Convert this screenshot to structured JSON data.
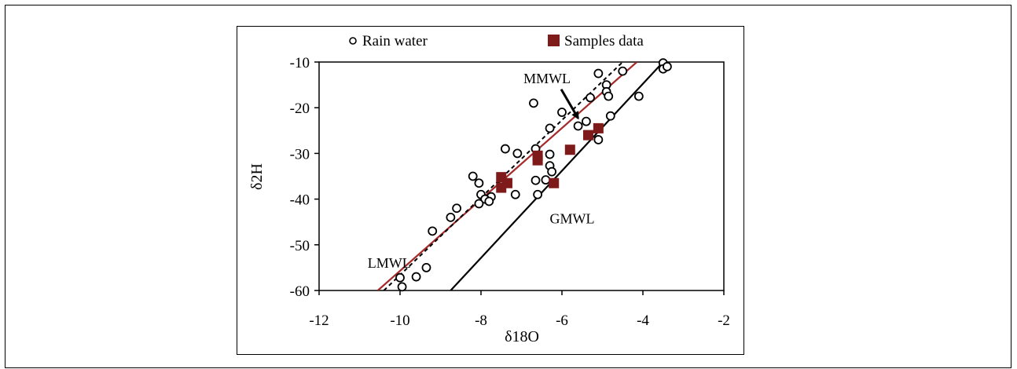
{
  "chart_data": {
    "type": "scatter",
    "xlabel": "δ18O",
    "ylabel": "δ2H",
    "xlim": [
      -12,
      -2
    ],
    "ylim": [
      -60,
      -10
    ],
    "xticks": [
      -12,
      -10,
      -8,
      -6,
      -4,
      -2
    ],
    "yticks": [
      -10,
      -20,
      -30,
      -40,
      -50,
      -60
    ],
    "grid": false,
    "legend_position": "top",
    "series": [
      {
        "name": "Rain water",
        "marker": "open-circle",
        "color": "#000000",
        "points": [
          [
            -3.5,
            -10.2
          ],
          [
            -3.5,
            -11.5
          ],
          [
            -3.4,
            -11.0
          ],
          [
            -4.5,
            -12.0
          ],
          [
            -5.1,
            -12.5
          ],
          [
            -4.9,
            -15.0
          ],
          [
            -4.9,
            -16.5
          ],
          [
            -4.85,
            -17.5
          ],
          [
            -5.3,
            -17.8
          ],
          [
            -4.1,
            -17.5
          ],
          [
            -6.7,
            -19.0
          ],
          [
            -6.0,
            -21.0
          ],
          [
            -4.8,
            -21.8
          ],
          [
            -5.4,
            -23.0
          ],
          [
            -5.6,
            -24.0
          ],
          [
            -6.3,
            -24.5
          ],
          [
            -5.1,
            -27.0
          ],
          [
            -7.4,
            -29.0
          ],
          [
            -6.65,
            -29.0
          ],
          [
            -7.1,
            -30.0
          ],
          [
            -6.3,
            -30.2
          ],
          [
            -6.6,
            -30.4
          ],
          [
            -6.3,
            -32.7
          ],
          [
            -6.25,
            -34.0
          ],
          [
            -8.2,
            -35.0
          ],
          [
            -6.65,
            -35.9
          ],
          [
            -6.4,
            -35.8
          ],
          [
            -8.05,
            -36.5
          ],
          [
            -7.5,
            -37.0
          ],
          [
            -8.0,
            -39.0
          ],
          [
            -7.15,
            -39.0
          ],
          [
            -6.6,
            -39.0
          ],
          [
            -7.75,
            -39.5
          ],
          [
            -7.9,
            -40.0
          ],
          [
            -7.8,
            -40.5
          ],
          [
            -8.05,
            -41.0
          ],
          [
            -8.6,
            -42.0
          ],
          [
            -8.75,
            -44.0
          ],
          [
            -9.2,
            -47.0
          ],
          [
            -9.35,
            -55.0
          ],
          [
            -9.6,
            -57.0
          ],
          [
            -10.0,
            -57.2
          ],
          [
            -9.95,
            -59.2
          ]
        ]
      },
      {
        "name": "Samples data",
        "marker": "filled-square",
        "color": "#7f1a1a",
        "points": [
          [
            -5.1,
            -24.5
          ],
          [
            -5.35,
            -26.0
          ],
          [
            -5.8,
            -29.2
          ],
          [
            -6.6,
            -30.5
          ],
          [
            -6.6,
            -31.5
          ],
          [
            -7.5,
            -35.2
          ],
          [
            -7.35,
            -36.5
          ],
          [
            -6.2,
            -36.5
          ],
          [
            -7.5,
            -37.5
          ]
        ]
      }
    ],
    "reference_lines": [
      {
        "name": "GMWL",
        "style": "solid",
        "color": "#000000",
        "from": [
          -8.75,
          -60
        ],
        "to": [
          -3.5,
          -10
        ]
      },
      {
        "name": "LMWL",
        "style": "solid",
        "color": "#a52a2a",
        "from": [
          -10.55,
          -60
        ],
        "to": [
          -4.15,
          -10
        ]
      },
      {
        "name": "MMWL",
        "style": "dashed",
        "color": "#000000",
        "from": [
          -10.4,
          -60
        ],
        "to": [
          -4.5,
          -10
        ]
      }
    ],
    "annotations": [
      {
        "text": "MMWL",
        "arrow": true,
        "x": -6.95,
        "y": -14.6,
        "arrow_to": [
          -5.6,
          -22.3
        ]
      },
      {
        "text": "GMWL",
        "arrow": false,
        "x": -6.3,
        "y": -45.3
      },
      {
        "text": "LMWL",
        "arrow": false,
        "x": -10.8,
        "y": -55.0
      }
    ]
  }
}
